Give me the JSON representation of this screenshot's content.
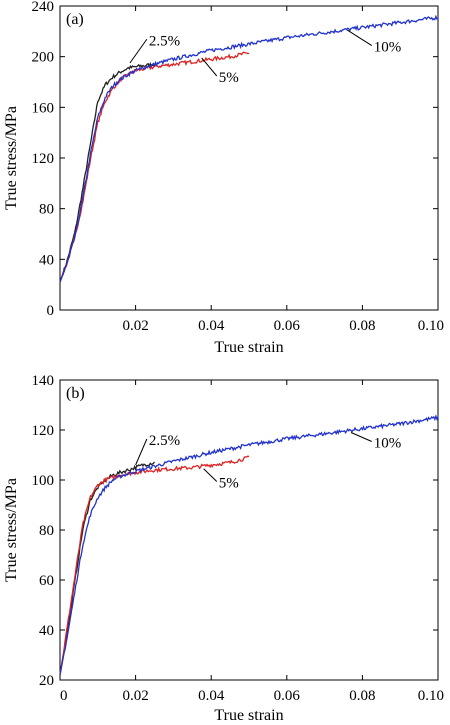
{
  "chart_data": [
    {
      "type": "line",
      "panel_label": "(a)",
      "xlabel": "True strain",
      "ylabel": "True stress/MPa",
      "xlim": [
        0,
        0.1
      ],
      "ylim": [
        0,
        240
      ],
      "xticks": [
        0.02,
        0.04,
        0.06,
        0.08,
        0.1
      ],
      "xtick_labels": [
        "0.02",
        "0.04",
        "0.06",
        "0.08",
        "0.10"
      ],
      "yticks": [
        0,
        40,
        80,
        120,
        160,
        200,
        240
      ],
      "ytick_labels": [
        "0",
        "40",
        "80",
        "120",
        "160",
        "200",
        "240"
      ],
      "grid": false,
      "legend": "none",
      "series": [
        {
          "color": "#222222",
          "x": [
            0,
            0.002,
            0.004,
            0.006,
            0.008,
            0.01,
            0.012,
            0.014,
            0.016,
            0.018,
            0.02,
            0.025
          ],
          "y": [
            22,
            40,
            62,
            95,
            130,
            165,
            178,
            184,
            188,
            191,
            192,
            194
          ]
        },
        {
          "color": "#dd2222",
          "x": [
            0,
            0.002,
            0.004,
            0.006,
            0.008,
            0.01,
            0.012,
            0.014,
            0.016,
            0.018,
            0.02,
            0.025,
            0.03,
            0.035,
            0.04,
            0.045,
            0.05
          ],
          "y": [
            22,
            38,
            58,
            85,
            118,
            148,
            165,
            175,
            182,
            186,
            189,
            192,
            194,
            196,
            198,
            200,
            203
          ]
        },
        {
          "color": "#2233cc",
          "x": [
            0,
            0.002,
            0.004,
            0.006,
            0.008,
            0.01,
            0.012,
            0.014,
            0.016,
            0.018,
            0.02,
            0.025,
            0.03,
            0.04,
            0.05,
            0.06,
            0.07,
            0.08,
            0.09,
            0.1
          ],
          "y": [
            22,
            38,
            58,
            88,
            122,
            152,
            168,
            177,
            182,
            186,
            189,
            194,
            198,
            205,
            210,
            215,
            219,
            223,
            227,
            231
          ]
        }
      ],
      "annotations": [
        {
          "text": "2.5%",
          "x": 0.0235,
          "y": 209,
          "line_to": [
            0.0185,
            195
          ]
        },
        {
          "text": "5%",
          "x": 0.042,
          "y": 180,
          "line_to": [
            0.0375,
            199
          ]
        },
        {
          "text": "10%",
          "x": 0.083,
          "y": 204,
          "line_to": [
            0.076,
            221
          ]
        }
      ]
    },
    {
      "type": "line",
      "panel_label": "(b)",
      "xlabel": "True strain",
      "ylabel": "True stress/MPa",
      "xlim": [
        0,
        0.1
      ],
      "ylim": [
        20,
        140
      ],
      "xticks": [
        0,
        0.02,
        0.04,
        0.06,
        0.08,
        0.1
      ],
      "xtick_labels": [
        "0",
        "0.02",
        "0.04",
        "0.06",
        "0.08",
        "0.10"
      ],
      "yticks": [
        20,
        40,
        60,
        80,
        100,
        120,
        140
      ],
      "ytick_labels": [
        "20",
        "40",
        "60",
        "80",
        "100",
        "120",
        "140"
      ],
      "grid": false,
      "legend": "none",
      "series": [
        {
          "color": "#222222",
          "x": [
            0,
            0.002,
            0.004,
            0.006,
            0.008,
            0.01,
            0.012,
            0.014,
            0.016,
            0.018,
            0.02,
            0.022,
            0.025
          ],
          "y": [
            22,
            40,
            60,
            80,
            92,
            97,
            100,
            102,
            103,
            104,
            105,
            106,
            107
          ]
        },
        {
          "color": "#dd2222",
          "x": [
            0,
            0.002,
            0.004,
            0.006,
            0.008,
            0.01,
            0.012,
            0.014,
            0.016,
            0.018,
            0.02,
            0.025,
            0.03,
            0.035,
            0.04,
            0.045,
            0.05
          ],
          "y": [
            22,
            42,
            62,
            82,
            93,
            98,
            100,
            101,
            102,
            102.5,
            103,
            104,
            104.5,
            105,
            106,
            107,
            109
          ]
        },
        {
          "color": "#2233cc",
          "x": [
            0,
            0.002,
            0.004,
            0.006,
            0.008,
            0.01,
            0.012,
            0.014,
            0.016,
            0.018,
            0.02,
            0.025,
            0.03,
            0.04,
            0.05,
            0.06,
            0.07,
            0.08,
            0.09,
            0.1
          ],
          "y": [
            22,
            38,
            56,
            74,
            86,
            93,
            97,
            100,
            101.5,
            102.5,
            103.5,
            105.5,
            107.5,
            111,
            114,
            116.5,
            118.5,
            120.5,
            122.5,
            125
          ]
        }
      ],
      "annotations": [
        {
          "text": "2.5%",
          "x": 0.0235,
          "y": 114,
          "line_to": [
            0.02,
            106
          ]
        },
        {
          "text": "5%",
          "x": 0.042,
          "y": 97,
          "line_to": [
            0.038,
            104.5
          ]
        },
        {
          "text": "10%",
          "x": 0.083,
          "y": 113,
          "line_to": [
            0.077,
            119
          ]
        }
      ]
    }
  ]
}
